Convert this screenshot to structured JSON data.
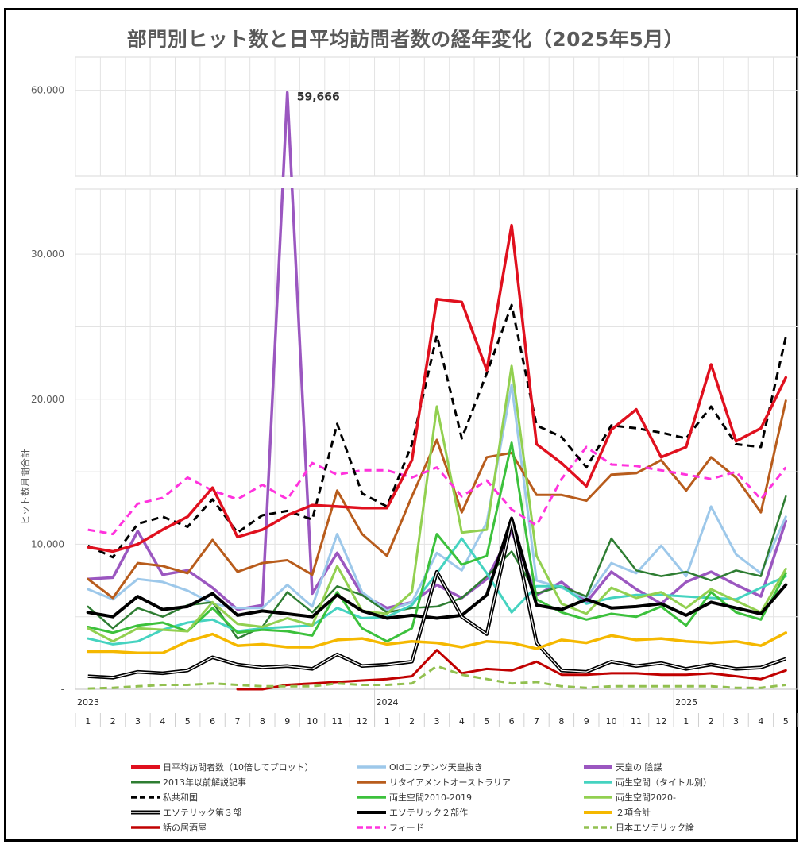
{
  "chart_data": {
    "type": "line",
    "title": "部門別ヒット数と日平均訪問者数の経年変化（2025年5月）",
    "ylabel": "ヒット数月間合計",
    "ylim": [
      0,
      65000
    ],
    "axis_break": [
      34500,
      47000
    ],
    "y_ticks": [
      {
        "value": 0,
        "label": "-"
      },
      {
        "value": 10000,
        "label": "10,000"
      },
      {
        "value": 20000,
        "label": "20,000"
      },
      {
        "value": 30000,
        "label": "30,000"
      },
      {
        "value": 60000,
        "label": "60,000"
      }
    ],
    "x": [
      "1",
      "2",
      "3",
      "4",
      "5",
      "6",
      "7",
      "8",
      "9",
      "10",
      "11",
      "12",
      "1",
      "2",
      "3",
      "4",
      "5",
      "6",
      "7",
      "8",
      "9",
      "10",
      "11",
      "12",
      "1",
      "2",
      "3",
      "4",
      "5"
    ],
    "year_labels": [
      {
        "index": 0,
        "label": "2023"
      },
      {
        "index": 12,
        "label": "2024"
      },
      {
        "index": 24,
        "label": "2025"
      }
    ],
    "annotation": {
      "series_index": 2,
      "point_index": 8,
      "text": "59,666"
    },
    "legend_position": "bottom",
    "grid": true,
    "series": [
      {
        "name": "日平均訪問者数（10倍してプロット）",
        "color": "#e0101e",
        "style": "solid",
        "width": 3.5,
        "values": [
          9800,
          9500,
          10000,
          11000,
          11900,
          13900,
          10500,
          11000,
          12000,
          12700,
          12600,
          12500,
          12500,
          15800,
          26900,
          26700,
          22000,
          32000,
          16900,
          15600,
          14000,
          17900,
          19300,
          16000,
          16700,
          22400,
          17100,
          18000,
          21500
        ]
      },
      {
        "name": "Oldコンテンツ天皇抜き",
        "color": "#9dc8ea",
        "style": "solid",
        "width": 3,
        "values": [
          6900,
          6200,
          7600,
          7400,
          6800,
          5900,
          5600,
          5600,
          7200,
          5700,
          10700,
          6700,
          5400,
          6000,
          9400,
          8200,
          11500,
          21000,
          7500,
          7000,
          6300,
          8700,
          8000,
          9900,
          7800,
          12600,
          9300,
          8000,
          11900
        ]
      },
      {
        "name": "天皇の 陰謀",
        "color": "#9b57c0",
        "style": "solid",
        "width": 3.5,
        "values": [
          7600,
          7700,
          10900,
          7900,
          8200,
          7000,
          5500,
          5800,
          59666,
          6600,
          9400,
          6500,
          5600,
          6000,
          7200,
          6300,
          7600,
          10900,
          6500,
          7400,
          6000,
          8100,
          6900,
          5900,
          7400,
          8100,
          7200,
          6400,
          11600
        ]
      },
      {
        "name": "2013年以前解説記事",
        "color": "#2e7d32",
        "style": "solid",
        "width": 2.5,
        "values": [
          5700,
          4200,
          5600,
          5000,
          5800,
          6000,
          3500,
          4300,
          6700,
          5300,
          7100,
          6500,
          5300,
          5600,
          5700,
          6300,
          7800,
          9500,
          6600,
          7100,
          6400,
          10400,
          8200,
          7800,
          8100,
          7500,
          8200,
          7800,
          13300
        ]
      },
      {
        "name": "リタイアメントオーストラリア",
        "color": "#b85c1c",
        "style": "solid",
        "width": 3,
        "values": [
          7600,
          6300,
          8700,
          8500,
          8000,
          10300,
          8100,
          8700,
          8900,
          7900,
          13700,
          10700,
          9200,
          13300,
          17200,
          12200,
          16000,
          16300,
          13400,
          13400,
          13000,
          14800,
          14900,
          15800,
          13700,
          16000,
          14600,
          12200,
          19900
        ]
      },
      {
        "name": "両生空間（タイトル別）",
        "color": "#45d3c0",
        "style": "solid",
        "width": 3,
        "values": [
          3500,
          3100,
          3300,
          4100,
          4600,
          4800,
          4000,
          4200,
          4300,
          4400,
          5600,
          4900,
          5000,
          5800,
          8000,
          10400,
          8000,
          5300,
          7100,
          7100,
          5900,
          6300,
          6500,
          6500,
          6400,
          6300,
          6200,
          7000,
          7800
        ]
      },
      {
        "name": "私共和国",
        "color": "#000000",
        "style": "dashed",
        "width": 3,
        "values": [
          9900,
          9100,
          11400,
          11900,
          11200,
          13100,
          10800,
          12000,
          12300,
          11700,
          18300,
          13500,
          12600,
          16900,
          24400,
          17300,
          21800,
          26500,
          18200,
          17400,
          15300,
          18200,
          18000,
          17700,
          17300,
          19500,
          16900,
          16700,
          24300
        ]
      },
      {
        "name": "両生空間2010-2019",
        "color": "#3cc13c",
        "style": "solid",
        "width": 3,
        "values": [
          4300,
          3900,
          4400,
          4600,
          4000,
          5600,
          3900,
          4100,
          4000,
          3700,
          6700,
          4200,
          3300,
          4200,
          10700,
          8600,
          9200,
          17000,
          6200,
          5300,
          4800,
          5200,
          5000,
          5700,
          4400,
          6700,
          5300,
          4800,
          8000
        ]
      },
      {
        "name": "両生空間2020-",
        "color": "#92d050",
        "style": "solid",
        "width": 3,
        "values": [
          4200,
          3300,
          4200,
          4100,
          4000,
          6000,
          4500,
          4300,
          4900,
          4400,
          8500,
          5400,
          5200,
          6700,
          19500,
          10800,
          11000,
          22300,
          9200,
          5900,
          5200,
          7000,
          6300,
          6700,
          5600,
          6900,
          6100,
          5300,
          8300
        ]
      },
      {
        "name": "エソテリック第３部",
        "color": "#000000",
        "style": "double",
        "width": 3,
        "values": [
          900,
          800,
          1200,
          1100,
          1300,
          2200,
          1700,
          1500,
          1600,
          1400,
          2400,
          1600,
          1700,
          1900,
          8100,
          5000,
          3800,
          11600,
          3200,
          1300,
          1200,
          1900,
          1600,
          1800,
          1400,
          1700,
          1400,
          1500,
          2100
        ]
      },
      {
        "name": "エソテリック２部作",
        "color": "#000000",
        "style": "solid",
        "width": 4,
        "values": [
          5300,
          5000,
          6400,
          5500,
          5700,
          6600,
          5100,
          5400,
          5200,
          5000,
          6500,
          5400,
          4900,
          5100,
          4900,
          5100,
          6500,
          11800,
          5800,
          5500,
          6200,
          5600,
          5700,
          5900,
          5100,
          6000,
          5600,
          5200,
          7200
        ]
      },
      {
        "name": "２項合計",
        "color": "#f5b800",
        "style": "solid",
        "width": 3.5,
        "values": [
          2600,
          2600,
          2500,
          2500,
          3300,
          3800,
          3000,
          3100,
          2900,
          2900,
          3400,
          3500,
          3100,
          3300,
          3200,
          2900,
          3300,
          3200,
          2800,
          3400,
          3200,
          3700,
          3400,
          3500,
          3300,
          3200,
          3300,
          3000,
          3900
        ]
      },
      {
        "name": "話の居酒屋",
        "color": "#c00000",
        "style": "solid",
        "width": 3,
        "values": [
          null,
          null,
          null,
          null,
          null,
          null,
          0,
          0,
          300,
          400,
          500,
          600,
          700,
          900,
          2700,
          1100,
          1400,
          1300,
          1900,
          1000,
          1000,
          1100,
          1100,
          1000,
          1000,
          1100,
          900,
          700,
          1300
        ]
      },
      {
        "name": "フィード",
        "color": "#ff33dd",
        "style": "dashed",
        "width": 3,
        "values": [
          11000,
          10700,
          12800,
          13200,
          14600,
          13700,
          13100,
          14100,
          13100,
          15600,
          14800,
          15100,
          15100,
          14600,
          15300,
          13300,
          14400,
          12400,
          11300,
          14500,
          16700,
          15500,
          15400,
          15100,
          14800,
          14500,
          15000,
          13100,
          15300
        ]
      },
      {
        "name": "日本エソテリック論",
        "color": "#92c050",
        "style": "dashed",
        "width": 3,
        "values": [
          50,
          100,
          200,
          300,
          300,
          400,
          300,
          200,
          200,
          200,
          400,
          300,
          300,
          400,
          1600,
          1000,
          700,
          400,
          500,
          200,
          100,
          200,
          200,
          200,
          200,
          200,
          100,
          100,
          300
        ]
      }
    ]
  }
}
